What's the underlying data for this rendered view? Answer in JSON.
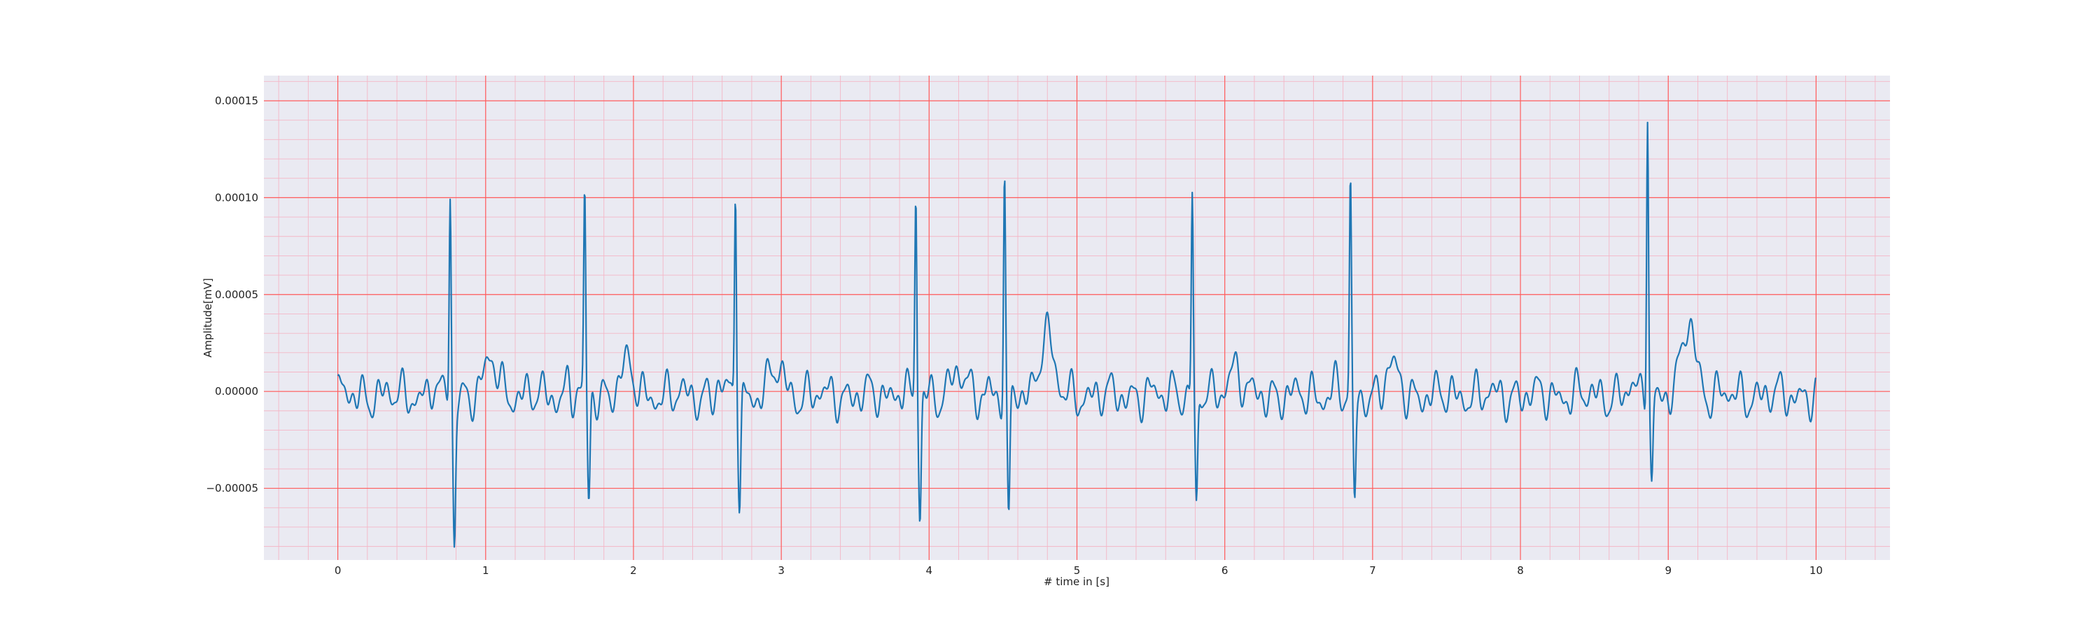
{
  "chart_data": {
    "type": "line",
    "title": "",
    "xlabel": "# time in [s]",
    "ylabel": "Amplitude[mV]",
    "xlim": [
      -0.5,
      10.5
    ],
    "ylim": [
      -8.7e-05,
      0.000163
    ],
    "x_ticks": [
      0,
      1,
      2,
      3,
      4,
      5,
      6,
      7,
      8,
      9,
      10
    ],
    "x_tick_labels": [
      "0",
      "1",
      "2",
      "3",
      "4",
      "5",
      "6",
      "7",
      "8",
      "9",
      "10"
    ],
    "y_ticks": [
      -5e-05,
      0,
      5e-05,
      0.0001,
      0.00015
    ],
    "y_tick_labels": [
      "−0.00005",
      "0.00000",
      "0.00005",
      "0.00010",
      "0.00015"
    ],
    "grid": {
      "major": true,
      "minor": true,
      "major_color": "#ff5c5c",
      "minor_color": "#f4b6c6"
    },
    "colors": {
      "plot_background": "#eaeaf2",
      "line": "#1f77b4"
    },
    "legend": "none",
    "sampling": {
      "t_start": 0,
      "t_end": 10,
      "dt": 0.004
    },
    "beats": [
      {
        "t": 0.76,
        "r_peak": 0.000104,
        "s_trough": -7.5e-05,
        "t_wave": 1.8e-05
      },
      {
        "t": 1.67,
        "r_peak": 0.000101,
        "s_trough": -5.6e-05,
        "t_wave": 1.5e-05
      },
      {
        "t": 2.69,
        "r_peak": 0.000112,
        "s_trough": -5.6e-05,
        "t_wave": 1.4e-05
      },
      {
        "t": 3.91,
        "r_peak": 0.000104,
        "s_trough": -6.4e-05,
        "t_wave": 1.2e-05
      },
      {
        "t": 4.51,
        "r_peak": 0.000114,
        "s_trough": -7.1e-05,
        "t_wave": 3.3e-05
      },
      {
        "t": 5.78,
        "r_peak": 0.000105,
        "s_trough": -6.3e-05,
        "t_wave": 1.4e-05
      },
      {
        "t": 6.85,
        "r_peak": 0.000106,
        "s_trough": -5.7e-05,
        "t_wave": 1.4e-05
      },
      {
        "t": 8.86,
        "r_peak": 0.000153,
        "s_trough": -4.5e-05,
        "t_wave": 3.8e-05
      }
    ],
    "end_value": 7e-06
  }
}
